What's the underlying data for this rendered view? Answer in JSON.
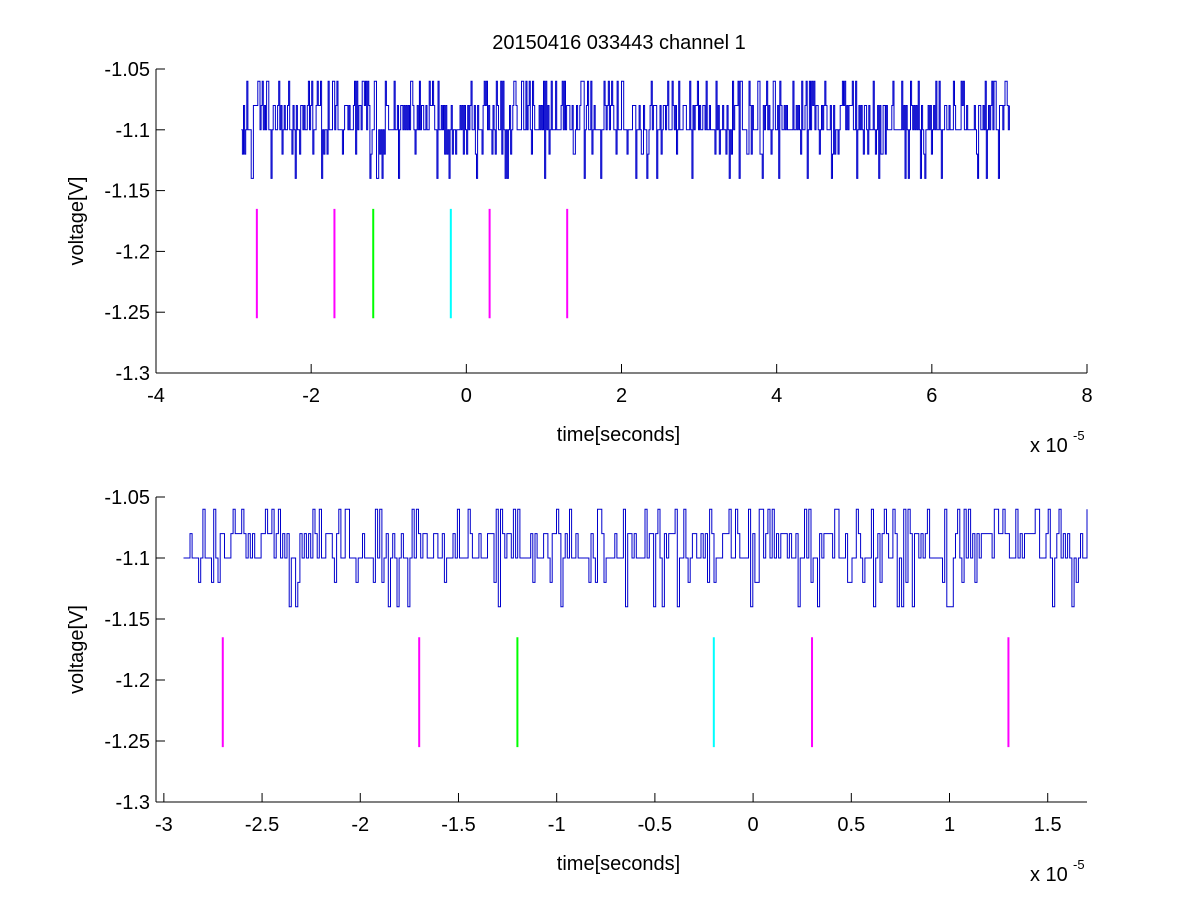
{
  "figure": {
    "title": "20150416 033443 channel 1",
    "background": "#ffffff"
  },
  "chart_data": [
    {
      "type": "line",
      "title": "20150416 033443 channel 1",
      "xlabel": "time[seconds]",
      "ylabel": "voltage[V]",
      "x_multiplier_label": "x 10",
      "x_multiplier_exponent": "-5",
      "xlim": [
        -4,
        8
      ],
      "ylim": [
        -1.3,
        -1.05
      ],
      "xticks": [
        -4,
        -2,
        0,
        2,
        4,
        6,
        8
      ],
      "xtick_labels": [
        "-4",
        "-2",
        "0",
        "2",
        "4",
        "6",
        "8"
      ],
      "yticks": [
        -1.05,
        -1.1,
        -1.15,
        -1.2,
        -1.25,
        -1.3
      ],
      "ytick_labels": [
        "-1.05",
        "-1.1",
        "-1.15",
        "-1.2",
        "-1.25",
        "-1.3"
      ],
      "grid": false,
      "signal": {
        "color": "#0000cc",
        "x_range": [
          -2.9,
          7.0
        ],
        "baseline": -1.1,
        "levels": [
          -1.06,
          -1.08,
          -1.1,
          -1.12,
          -1.14
        ],
        "seed": 7
      },
      "markers": [
        {
          "x": -2.7,
          "y": [
            -1.255,
            -1.165
          ],
          "color": "#ff00ff"
        },
        {
          "x": -1.7,
          "y": [
            -1.255,
            -1.165
          ],
          "color": "#ff00ff"
        },
        {
          "x": -1.2,
          "y": [
            -1.255,
            -1.165
          ],
          "color": "#00ff00"
        },
        {
          "x": -0.2,
          "y": [
            -1.255,
            -1.165
          ],
          "color": "#00ffff"
        },
        {
          "x": 0.3,
          "y": [
            -1.255,
            -1.165
          ],
          "color": "#ff00ff"
        },
        {
          "x": 1.3,
          "y": [
            -1.255,
            -1.165
          ],
          "color": "#ff00ff"
        }
      ]
    },
    {
      "type": "line",
      "title": "",
      "xlabel": "time[seconds]",
      "ylabel": "voltage[V]",
      "x_multiplier_label": "x 10",
      "x_multiplier_exponent": "-5",
      "xlim": [
        -3.04,
        1.7
      ],
      "ylim": [
        -1.3,
        -1.05
      ],
      "xticks": [
        -3,
        -2.5,
        -2,
        -1.5,
        -1,
        -0.5,
        0,
        0.5,
        1,
        1.5
      ],
      "xtick_labels": [
        "-3",
        "-2.5",
        "-2",
        "-1.5",
        "-1",
        "-0.5",
        "0",
        "0.5",
        "1",
        "1.5"
      ],
      "yticks": [
        -1.05,
        -1.1,
        -1.15,
        -1.2,
        -1.25,
        -1.3
      ],
      "ytick_labels": [
        "-1.05",
        "-1.1",
        "-1.15",
        "-1.2",
        "-1.25",
        "-1.3"
      ],
      "grid": false,
      "signal": {
        "color": "#0000cc",
        "x_range": [
          -2.9,
          1.7
        ],
        "baseline": -1.1,
        "levels": [
          -1.06,
          -1.08,
          -1.1,
          -1.12,
          -1.14
        ],
        "seed": 21
      },
      "markers": [
        {
          "x": -2.7,
          "y": [
            -1.255,
            -1.165
          ],
          "color": "#ff00ff"
        },
        {
          "x": -1.7,
          "y": [
            -1.255,
            -1.165
          ],
          "color": "#ff00ff"
        },
        {
          "x": -1.2,
          "y": [
            -1.255,
            -1.165
          ],
          "color": "#00ff00"
        },
        {
          "x": -0.2,
          "y": [
            -1.255,
            -1.165
          ],
          "color": "#00ffff"
        },
        {
          "x": 0.3,
          "y": [
            -1.255,
            -1.165
          ],
          "color": "#ff00ff"
        },
        {
          "x": 1.3,
          "y": [
            -1.255,
            -1.165
          ],
          "color": "#ff00ff"
        }
      ]
    }
  ]
}
